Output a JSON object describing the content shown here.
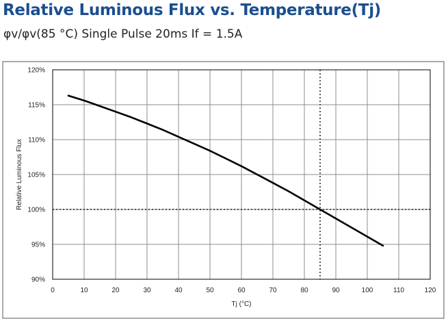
{
  "title": "Relative Luminous Flux vs. Temperature(Tj)",
  "subtitle": "φv/φv(85  °C) Single Pulse 20ms  If = 1.5A",
  "chart_data": {
    "type": "line",
    "xlabel": "Tj (°C)",
    "ylabel": "Relative Luminous Flux",
    "xlim": [
      0,
      120
    ],
    "ylim": [
      90,
      120
    ],
    "x_ticks": [
      0,
      10,
      20,
      30,
      40,
      50,
      60,
      70,
      80,
      90,
      100,
      110,
      120
    ],
    "y_ticks": [
      90,
      95,
      100,
      105,
      110,
      115,
      120
    ],
    "y_tick_labels": [
      "90%",
      "95%",
      "100%",
      "105%",
      "110%",
      "115%",
      "120%"
    ],
    "grid": true,
    "reference_lines": {
      "x": 85,
      "y": 100
    },
    "series": [
      {
        "x": [
          5,
          10,
          15,
          20,
          25,
          30,
          35,
          40,
          45,
          50,
          55,
          60,
          65,
          70,
          75,
          80,
          85,
          90,
          95,
          100,
          105
        ],
        "y": [
          116.3,
          115.6,
          114.8,
          114.0,
          113.2,
          112.3,
          111.4,
          110.4,
          109.4,
          108.4,
          107.3,
          106.2,
          105.0,
          103.8,
          102.6,
          101.3,
          100.0,
          98.7,
          97.4,
          96.1,
          94.8
        ],
        "color": "#000000"
      }
    ]
  }
}
